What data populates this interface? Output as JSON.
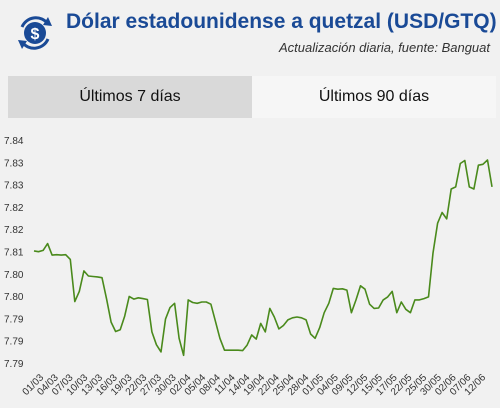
{
  "header": {
    "title": "Dólar estadounidense a quetzal (USD/GTQ)",
    "subtitle": "Actualización diaria, fuente: Banguat",
    "logo_icon": "dollar-exchange-icon",
    "title_color": "#1a4a96"
  },
  "tabs": [
    {
      "label": "Últimos 7 días",
      "active": false
    },
    {
      "label": "Últimos 90 días",
      "active": true
    }
  ],
  "chart_data": {
    "type": "line",
    "y_ticks": [
      "7.84",
      "7.83",
      "7.83",
      "7.82",
      "7.82",
      "7.81",
      "7.80",
      "7.80",
      "7.79",
      "7.79",
      "7.79"
    ],
    "x_ticks": [
      "01/03",
      "04/03",
      "07/03",
      "10/03",
      "13/03",
      "16/03",
      "19/03",
      "22/03",
      "27/03",
      "30/03",
      "02/04",
      "05/04",
      "08/04",
      "11/04",
      "14/04",
      "19/04",
      "22/04",
      "25/04",
      "28/04",
      "01/05",
      "04/05",
      "09/05",
      "12/05",
      "15/05",
      "17/05",
      "22/05",
      "25/05",
      "30/05",
      "02/06",
      "07/06",
      "12/06"
    ],
    "ylim": [
      7.7885,
      7.8415
    ],
    "line_color": "#4a8a1c",
    "values": [
      7.8155,
      7.8153,
      7.8156,
      7.8172,
      7.8145,
      7.8146,
      7.8145,
      7.8146,
      7.8135,
      7.8036,
      7.806,
      7.8108,
      7.8096,
      7.8095,
      7.8094,
      7.8092,
      7.8042,
      7.7988,
      7.7966,
      7.797,
      7.8002,
      7.8048,
      7.8042,
      7.8045,
      7.8043,
      7.8041,
      7.7965,
      7.7935,
      7.7918,
      7.7995,
      7.8022,
      7.8032,
      7.795,
      7.791,
      7.804,
      7.8034,
      7.8032,
      7.8035,
      7.8035,
      7.803,
      7.799,
      7.795,
      7.7922,
      7.7922,
      7.7922,
      7.7922,
      7.7921,
      7.7934,
      7.7958,
      7.7948,
      7.7985,
      7.7965,
      7.802,
      7.8,
      7.7972,
      7.798,
      7.7993,
      7.7998,
      7.8,
      7.7998,
      7.7993,
      7.796,
      7.795,
      7.7975,
      7.801,
      7.8032,
      7.8067,
      7.8065,
      7.8066,
      7.8063,
      7.801,
      7.804,
      7.8073,
      7.8065,
      7.803,
      7.802,
      7.8021,
      7.804,
      7.8047,
      7.806,
      7.801,
      7.8035,
      7.8018,
      7.801,
      7.804,
      7.804,
      7.8043,
      7.8047,
      7.815,
      7.822,
      7.8245,
      7.823,
      7.83,
      7.8305,
      7.836,
      7.8367,
      7.8305,
      7.83,
      7.8356,
      7.8358,
      7.8368,
      7.8305
    ]
  }
}
